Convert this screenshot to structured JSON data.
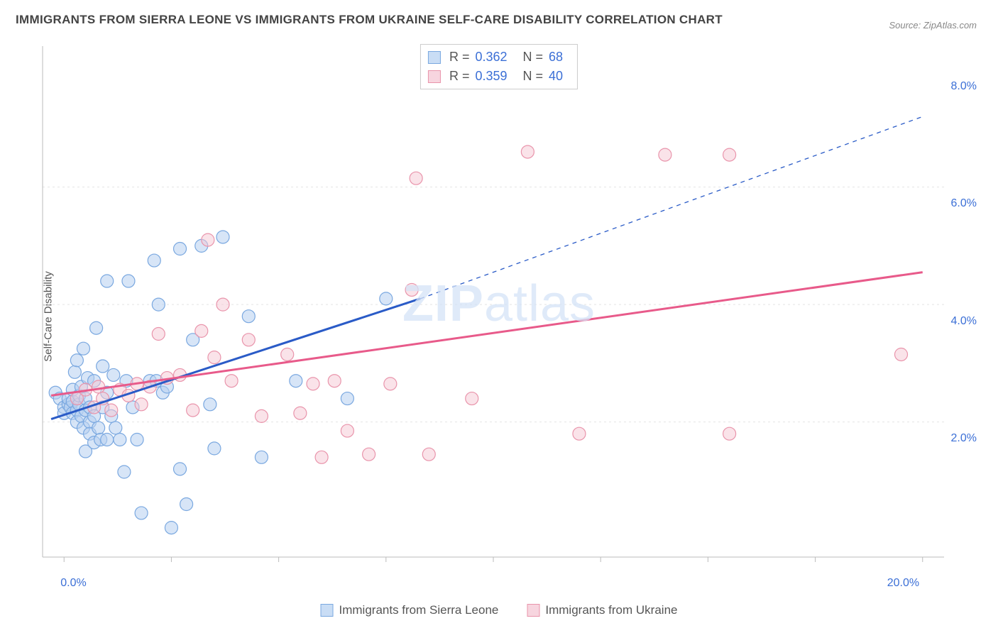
{
  "title": "IMMIGRANTS FROM SIERRA LEONE VS IMMIGRANTS FROM UKRAINE SELF-CARE DISABILITY CORRELATION CHART",
  "source": "Source: ZipAtlas.com",
  "ylabel": "Self-Care Disability",
  "watermark_part1": "ZIP",
  "watermark_part2": "atlas",
  "chart": {
    "type": "scatter",
    "background_color": "#ffffff",
    "grid_color": "#e4e4e4",
    "axis_color": "#bbbbbb",
    "xlim": [
      -0.5,
      20.5
    ],
    "ylim": [
      0,
      8.7
    ],
    "x_ticks": [
      0.0,
      20.0
    ],
    "x_tick_labels": [
      "0.0%",
      "20.0%"
    ],
    "y_ticks": [
      2.0,
      4.0,
      6.0,
      8.0
    ],
    "y_tick_labels": [
      "2.0%",
      "4.0%",
      "6.0%",
      "8.0%"
    ],
    "x_minor_ticks": [
      0,
      2.5,
      5,
      7.5,
      10,
      12.5,
      15,
      17.5,
      20
    ],
    "y_gridlines": [
      2.3,
      4.3,
      6.3
    ],
    "series": [
      {
        "name": "Immigrants from Sierra Leone",
        "color_fill": "#b6d0f0",
        "color_stroke": "#7aa8e0",
        "swatch_fill": "#c9ddf5",
        "swatch_border": "#7aa8e0",
        "R": "0.362",
        "N": "68",
        "marker_radius": 9,
        "marker_opacity": 0.55,
        "trend": {
          "x1": -0.3,
          "y1": 2.35,
          "x2": 8.3,
          "y2": 4.4,
          "color": "#2a5bc7",
          "width": 3,
          "dash_from_x": 8.3,
          "dash_to_x": 20,
          "dash_to_y": 7.5
        },
        "points": [
          [
            -0.2,
            2.8
          ],
          [
            -0.1,
            2.7
          ],
          [
            0.0,
            2.55
          ],
          [
            0.0,
            2.45
          ],
          [
            0.1,
            2.6
          ],
          [
            0.1,
            2.7
          ],
          [
            0.15,
            2.55
          ],
          [
            0.2,
            2.65
          ],
          [
            0.2,
            2.85
          ],
          [
            0.2,
            2.45
          ],
          [
            0.25,
            3.15
          ],
          [
            0.3,
            3.35
          ],
          [
            0.3,
            2.5
          ],
          [
            0.3,
            2.3
          ],
          [
            0.35,
            2.6
          ],
          [
            0.35,
            2.75
          ],
          [
            0.4,
            2.9
          ],
          [
            0.4,
            2.4
          ],
          [
            0.45,
            2.2
          ],
          [
            0.45,
            3.55
          ],
          [
            0.5,
            2.7
          ],
          [
            0.5,
            2.5
          ],
          [
            0.5,
            1.8
          ],
          [
            0.55,
            3.05
          ],
          [
            0.6,
            2.3
          ],
          [
            0.6,
            2.55
          ],
          [
            0.6,
            2.1
          ],
          [
            0.7,
            3.0
          ],
          [
            0.7,
            2.4
          ],
          [
            0.7,
            1.95
          ],
          [
            0.75,
            3.9
          ],
          [
            0.8,
            2.2
          ],
          [
            0.85,
            2.0
          ],
          [
            0.9,
            3.25
          ],
          [
            0.9,
            2.55
          ],
          [
            1.0,
            2.0
          ],
          [
            1.0,
            2.8
          ],
          [
            1.0,
            4.7
          ],
          [
            1.1,
            2.4
          ],
          [
            1.15,
            3.1
          ],
          [
            1.2,
            2.2
          ],
          [
            1.3,
            2.0
          ],
          [
            1.4,
            1.45
          ],
          [
            1.45,
            3.0
          ],
          [
            1.5,
            4.7
          ],
          [
            1.6,
            2.55
          ],
          [
            1.7,
            2.0
          ],
          [
            1.8,
            0.75
          ],
          [
            2.0,
            3.0
          ],
          [
            2.1,
            5.05
          ],
          [
            2.15,
            3.0
          ],
          [
            2.2,
            4.3
          ],
          [
            2.3,
            2.8
          ],
          [
            2.4,
            2.9
          ],
          [
            2.5,
            0.5
          ],
          [
            2.7,
            1.5
          ],
          [
            2.7,
            5.25
          ],
          [
            2.85,
            0.9
          ],
          [
            3.0,
            3.7
          ],
          [
            3.2,
            5.3
          ],
          [
            3.4,
            2.6
          ],
          [
            3.5,
            1.85
          ],
          [
            3.7,
            5.45
          ],
          [
            4.3,
            4.1
          ],
          [
            4.6,
            1.7
          ],
          [
            5.4,
            3.0
          ],
          [
            6.6,
            2.7
          ],
          [
            7.5,
            4.4
          ]
        ]
      },
      {
        "name": "Immigrants from Ukraine",
        "color_fill": "#f5c7d3",
        "color_stroke": "#e994ab",
        "swatch_fill": "#f7d5df",
        "swatch_border": "#e994ab",
        "R": "0.359",
        "N": "40",
        "marker_radius": 9,
        "marker_opacity": 0.5,
        "trend": {
          "x1": -0.3,
          "y1": 2.75,
          "x2": 20,
          "y2": 4.85,
          "color": "#e85a8a",
          "width": 3
        },
        "points": [
          [
            0.3,
            2.7
          ],
          [
            0.5,
            2.85
          ],
          [
            0.7,
            2.55
          ],
          [
            0.8,
            2.9
          ],
          [
            0.9,
            2.7
          ],
          [
            1.1,
            2.5
          ],
          [
            1.3,
            2.85
          ],
          [
            1.5,
            2.75
          ],
          [
            1.7,
            2.95
          ],
          [
            1.8,
            2.6
          ],
          [
            2.0,
            2.9
          ],
          [
            2.2,
            3.8
          ],
          [
            2.4,
            3.05
          ],
          [
            2.7,
            3.1
          ],
          [
            3.0,
            2.5
          ],
          [
            3.2,
            3.85
          ],
          [
            3.35,
            5.4
          ],
          [
            3.5,
            3.4
          ],
          [
            3.7,
            4.3
          ],
          [
            3.9,
            3.0
          ],
          [
            4.3,
            3.7
          ],
          [
            4.6,
            2.4
          ],
          [
            5.2,
            3.45
          ],
          [
            5.5,
            2.45
          ],
          [
            5.8,
            2.95
          ],
          [
            6.0,
            1.7
          ],
          [
            6.3,
            3.0
          ],
          [
            6.6,
            2.15
          ],
          [
            7.1,
            1.75
          ],
          [
            7.6,
            2.95
          ],
          [
            8.1,
            4.55
          ],
          [
            8.2,
            6.45
          ],
          [
            8.5,
            1.75
          ],
          [
            9.5,
            2.7
          ],
          [
            10.8,
            6.9
          ],
          [
            12.0,
            2.1
          ],
          [
            14.0,
            6.85
          ],
          [
            15.5,
            6.85
          ],
          [
            15.5,
            2.1
          ],
          [
            19.5,
            3.45
          ]
        ]
      }
    ]
  }
}
